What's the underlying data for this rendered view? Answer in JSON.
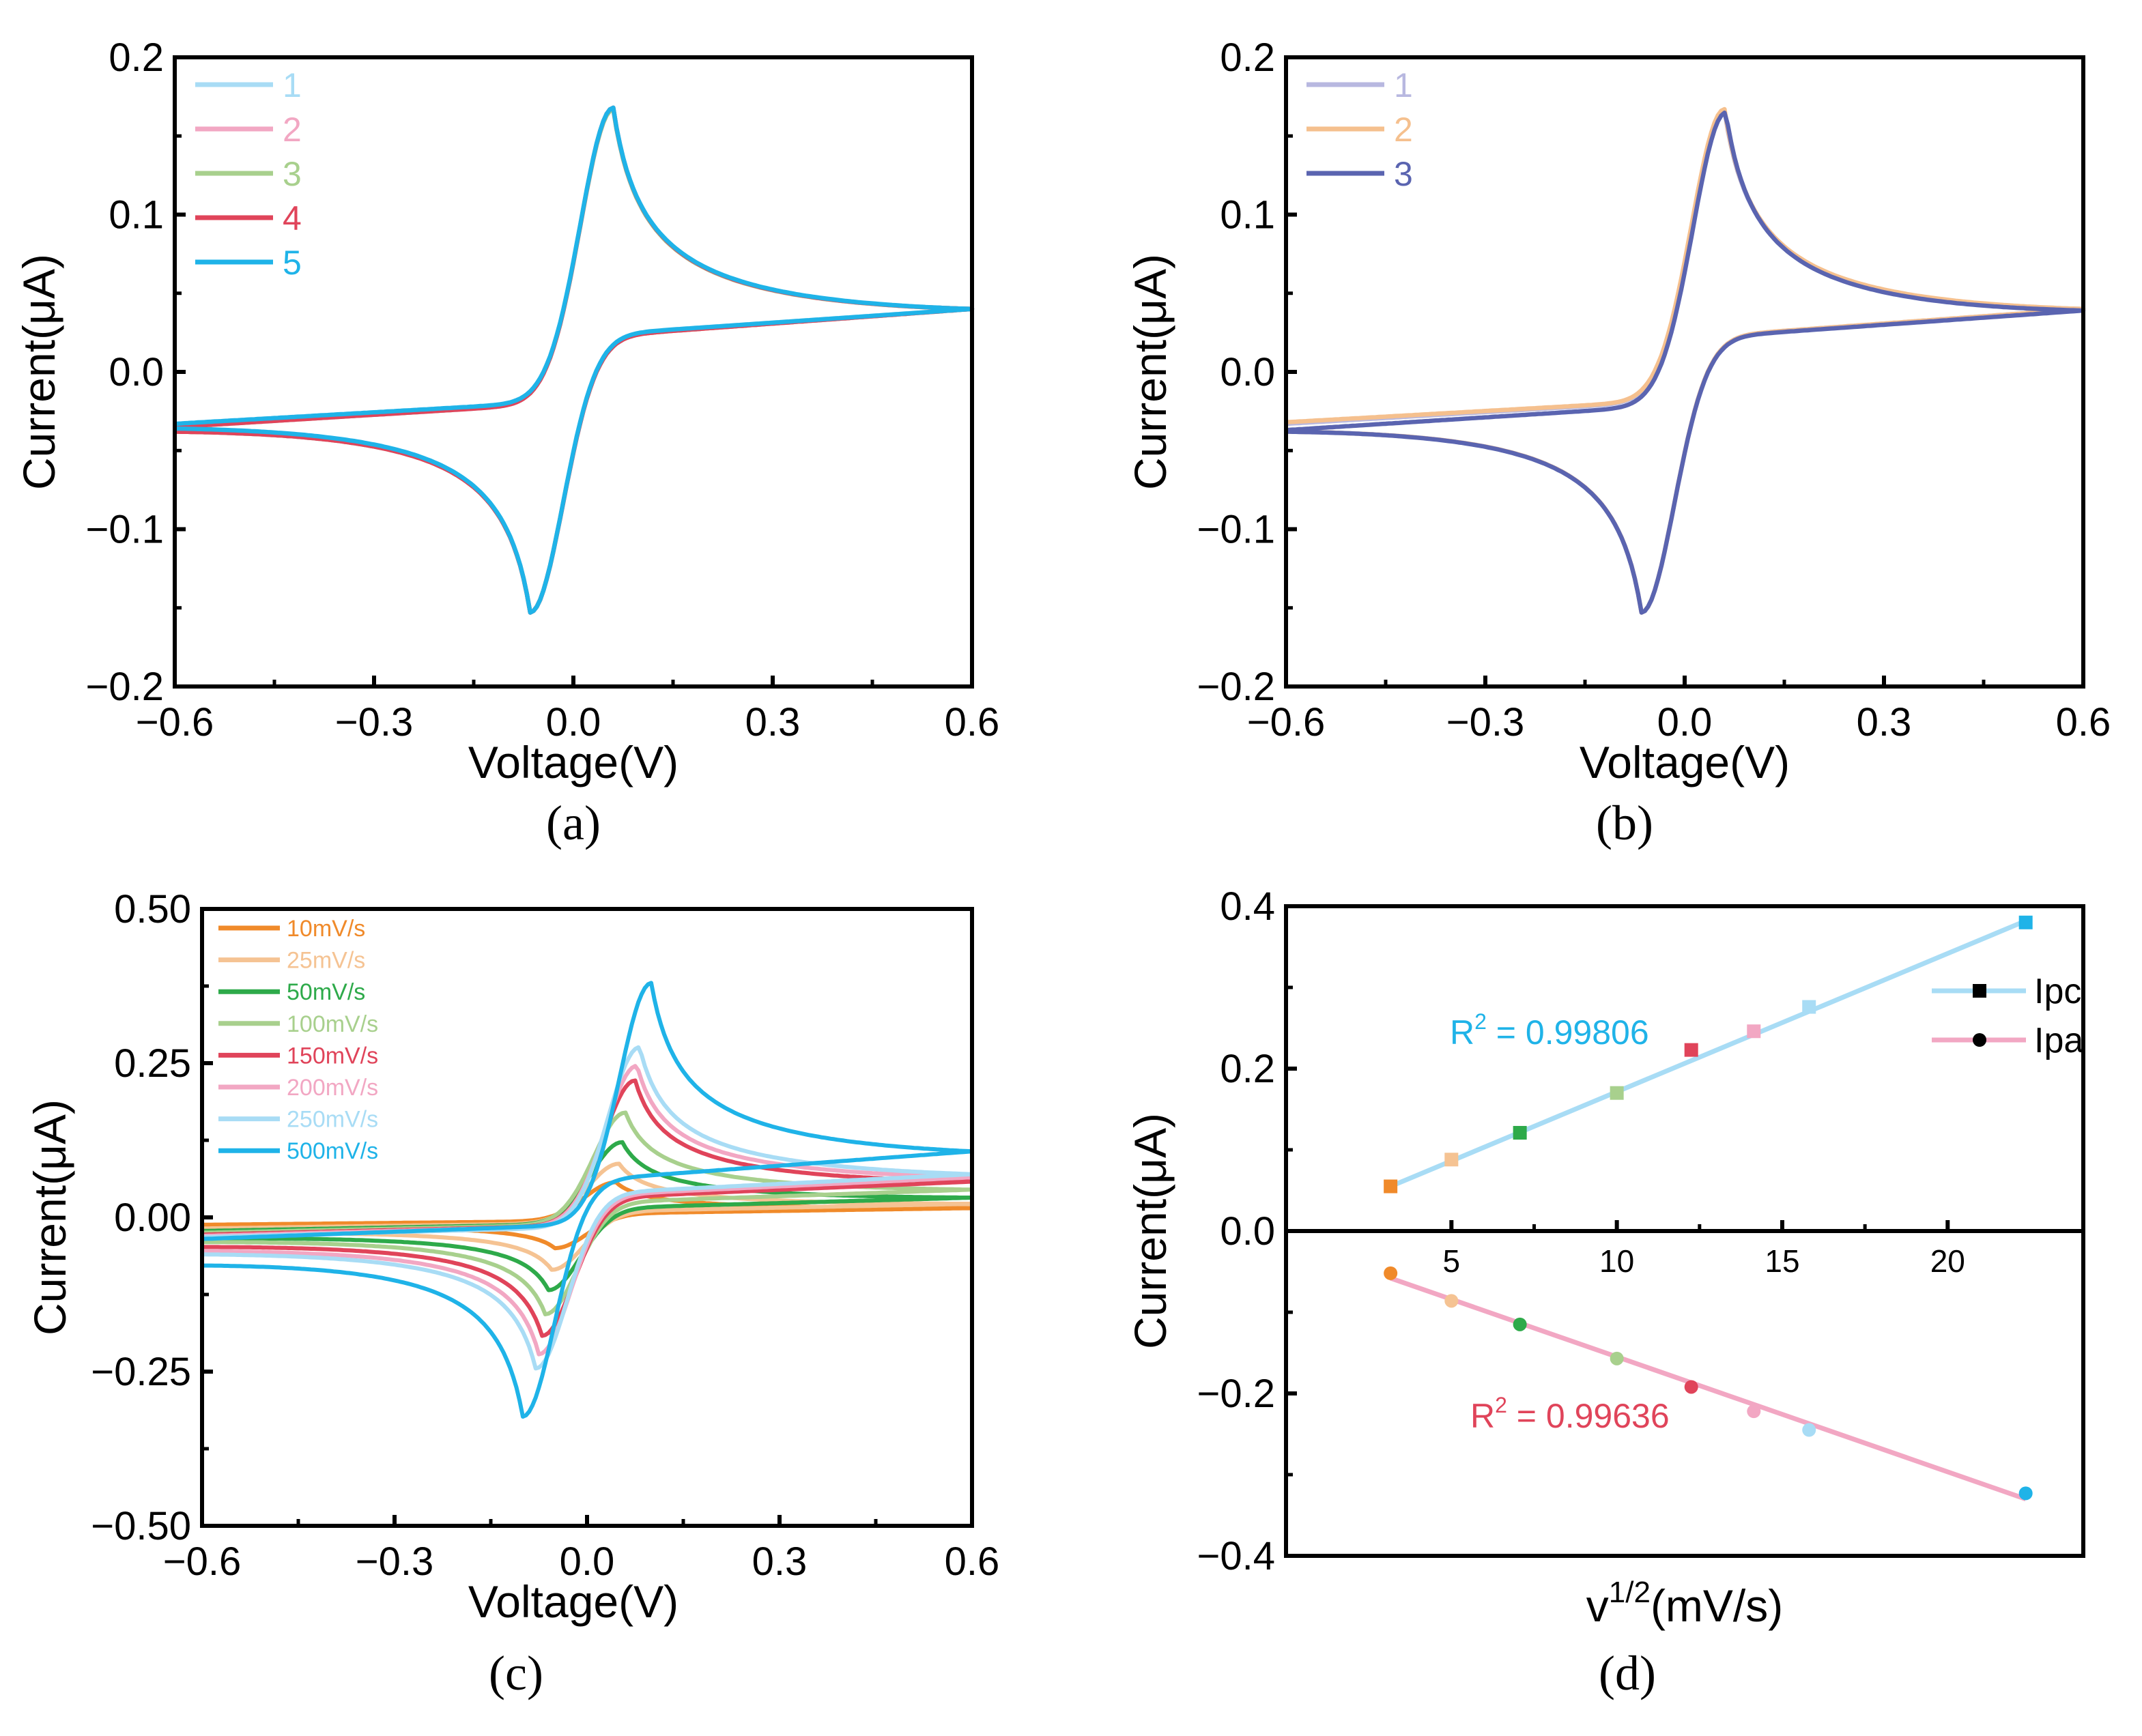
{
  "chart_data": [
    {
      "type": "line",
      "caption": "(a)",
      "xlabel": "Voltage(V)",
      "ylabel": "Current(μA)",
      "xlim": [
        -0.6,
        0.6
      ],
      "ylim": [
        -0.2,
        0.2
      ],
      "xticks": [
        -0.6,
        -0.3,
        0.0,
        0.3,
        0.6
      ],
      "xtick_labels": [
        "−0.6",
        "−0.3",
        "0.0",
        "0.3",
        "0.6"
      ],
      "yticks": [
        -0.2,
        -0.1,
        0.0,
        0.1,
        0.2
      ],
      "ytick_labels": [
        "−0.2",
        "−0.1",
        "0.0",
        "0.1",
        "0.2"
      ],
      "legend_position": "top-left",
      "series": [
        {
          "name": "1",
          "color": "#a8dcf5",
          "Epa": 0.06,
          "Ipa": 0.168,
          "Epc": -0.065,
          "Ipc": -0.153,
          "i_start_fwd": -0.035,
          "i_end": 0.04,
          "i_end_rev": -0.038
        },
        {
          "name": "2",
          "color": "#f2a7c3",
          "Epa": 0.06,
          "Ipa": 0.167,
          "Epc": -0.065,
          "Ipc": -0.153,
          "i_start_fwd": -0.035,
          "i_end": 0.04,
          "i_end_rev": -0.038
        },
        {
          "name": "3",
          "color": "#a8d08d",
          "Epa": 0.06,
          "Ipa": 0.167,
          "Epc": -0.065,
          "Ipc": -0.153,
          "i_start_fwd": -0.035,
          "i_end": 0.04,
          "i_end_rev": -0.038
        },
        {
          "name": "4",
          "color": "#e0445a",
          "Epa": 0.06,
          "Ipa": 0.168,
          "Epc": -0.065,
          "Ipc": -0.153,
          "i_start_fwd": -0.035,
          "i_end": 0.04,
          "i_end_rev": -0.038
        },
        {
          "name": "5",
          "color": "#1fb3e8",
          "Epa": 0.06,
          "Ipa": 0.168,
          "Epc": -0.065,
          "Ipc": -0.153,
          "i_start_fwd": -0.033,
          "i_end": 0.04,
          "i_end_rev": -0.036
        }
      ]
    },
    {
      "type": "line",
      "caption": "(b)",
      "xlabel": "Voltage(V)",
      "ylabel": "Current(μA)",
      "xlim": [
        -0.6,
        0.6
      ],
      "ylim": [
        -0.2,
        0.2
      ],
      "xticks": [
        -0.6,
        -0.3,
        0.0,
        0.3,
        0.6
      ],
      "xtick_labels": [
        "−0.6",
        "−0.3",
        "0.0",
        "0.3",
        "0.6"
      ],
      "yticks": [
        -0.2,
        -0.1,
        0.0,
        0.1,
        0.2
      ],
      "ytick_labels": [
        "−0.2",
        "−0.1",
        "0.0",
        "0.1",
        "0.2"
      ],
      "legend_position": "top-left",
      "series": [
        {
          "name": "1",
          "color": "#b8b8e0",
          "Epa": 0.06,
          "Ipa": 0.166,
          "Epc": -0.065,
          "Ipc": -0.153,
          "i_start_fwd": -0.033,
          "i_end": 0.04,
          "i_end_rev": -0.038
        },
        {
          "name": "2",
          "color": "#f5c08e",
          "Epa": 0.06,
          "Ipa": 0.167,
          "Epc": -0.065,
          "Ipc": -0.153,
          "i_start_fwd": -0.032,
          "i_end": 0.04,
          "i_end_rev": -0.038
        },
        {
          "name": "3",
          "color": "#5a64b0",
          "Epa": 0.062,
          "Ipa": 0.165,
          "Epc": -0.065,
          "Ipc": -0.153,
          "i_start_fwd": -0.037,
          "i_end": 0.039,
          "i_end_rev": -0.038
        }
      ]
    },
    {
      "type": "line",
      "caption": "(c)",
      "xlabel": "Voltage(V)",
      "ylabel": "Current(μA)",
      "xlim": [
        -0.6,
        0.6
      ],
      "ylim": [
        -0.5,
        0.5
      ],
      "xticks": [
        -0.6,
        -0.3,
        0.0,
        0.3,
        0.6
      ],
      "xtick_labels": [
        "−0.6",
        "−0.3",
        "0.0",
        "0.3",
        "0.6"
      ],
      "yticks": [
        -0.5,
        -0.25,
        0.0,
        0.25,
        0.5
      ],
      "ytick_labels": [
        "−0.50",
        "−0.25",
        "0.00",
        "0.25",
        "0.50"
      ],
      "legend_position": "top-left",
      "series": [
        {
          "name": "10mV/s",
          "color": "#f08a2a",
          "Epa": 0.045,
          "Ipa": 0.057,
          "Epc": -0.05,
          "Ipc": -0.05,
          "i_start_fwd": -0.012,
          "i_end": 0.015,
          "i_end_rev": -0.016
        },
        {
          "name": "25mV/s",
          "color": "#f5c393",
          "Epa": 0.05,
          "Ipa": 0.087,
          "Epc": -0.055,
          "Ipc": -0.085,
          "i_start_fwd": -0.018,
          "i_end": 0.022,
          "i_end_rev": -0.025
        },
        {
          "name": "50mV/s",
          "color": "#2eaa4a",
          "Epa": 0.055,
          "Ipa": 0.122,
          "Epc": -0.06,
          "Ipc": -0.118,
          "i_start_fwd": -0.022,
          "i_end": 0.032,
          "i_end_rev": -0.034
        },
        {
          "name": "100mV/s",
          "color": "#a8d08d",
          "Epa": 0.06,
          "Ipa": 0.17,
          "Epc": -0.065,
          "Ipc": -0.157,
          "i_start_fwd": -0.025,
          "i_end": 0.045,
          "i_end_rev": -0.04
        },
        {
          "name": "150mV/s",
          "color": "#e0445a",
          "Epa": 0.075,
          "Ipa": 0.222,
          "Epc": -0.07,
          "Ipc": -0.192,
          "i_start_fwd": -0.028,
          "i_end": 0.058,
          "i_end_rev": -0.048
        },
        {
          "name": "200mV/s",
          "color": "#f2a7c3",
          "Epa": 0.078,
          "Ipa": 0.246,
          "Epc": -0.075,
          "Ipc": -0.222,
          "i_start_fwd": -0.03,
          "i_end": 0.065,
          "i_end_rev": -0.055
        },
        {
          "name": "250mV/s",
          "color": "#a8dcf5",
          "Epa": 0.082,
          "Ipa": 0.276,
          "Epc": -0.08,
          "Ipc": -0.245,
          "i_start_fwd": -0.032,
          "i_end": 0.07,
          "i_end_rev": -0.06
        },
        {
          "name": "500mV/s",
          "color": "#1fb3e8",
          "Epa": 0.1,
          "Ipa": 0.38,
          "Epc": -0.1,
          "Ipc": -0.323,
          "i_start_fwd": -0.035,
          "i_end": 0.107,
          "i_end_rev": -0.078
        }
      ]
    },
    {
      "type": "scatter",
      "caption": "(d)",
      "xlabel_main": "v",
      "xlabel_sup": "1/2",
      "xlabel_rest": "(mV/s)",
      "ylabel": "Current(μA)",
      "xlim": [
        0,
        24.1
      ],
      "ylim": [
        -0.4,
        0.4
      ],
      "xticks": [
        5,
        10,
        15,
        20
      ],
      "xtick_labels": [
        "5",
        "10",
        "15",
        "20"
      ],
      "yticks": [
        -0.4,
        -0.2,
        0.0,
        0.2,
        0.4
      ],
      "ytick_labels": [
        "−0.4",
        "−0.2",
        "0.0",
        "0.2",
        "0.4"
      ],
      "legend_position": "top-right",
      "x": [
        3.16,
        5.0,
        7.07,
        10.0,
        12.25,
        14.14,
        15.81,
        22.36
      ],
      "point_colors": [
        "#f08a2a",
        "#f5c393",
        "#2eaa4a",
        "#a8d08d",
        "#e0445a",
        "#f2a7c3",
        "#a8dcf5",
        "#1fb3e8"
      ],
      "series": [
        {
          "name": "Ipc",
          "marker": "square",
          "line_color": "#a8dcf5",
          "values": [
            0.055,
            0.088,
            0.121,
            0.17,
            0.223,
            0.246,
            0.276,
            0.38
          ],
          "fit": [
            0.055,
            0.382
          ],
          "r2_label": "R",
          "r2_sup": "2",
          "r2_value": " = 0.99806",
          "r2_color": "#1fb3e8"
        },
        {
          "name": "Ipa",
          "marker": "circle",
          "line_color": "#f2a7c3",
          "values": [
            -0.052,
            -0.086,
            -0.115,
            -0.157,
            -0.192,
            -0.222,
            -0.245,
            -0.323
          ],
          "fit": [
            -0.058,
            -0.33
          ],
          "r2_label": "R",
          "r2_sup": "2",
          "r2_value": " = 0.99636",
          "r2_color": "#e0445a"
        }
      ]
    }
  ]
}
